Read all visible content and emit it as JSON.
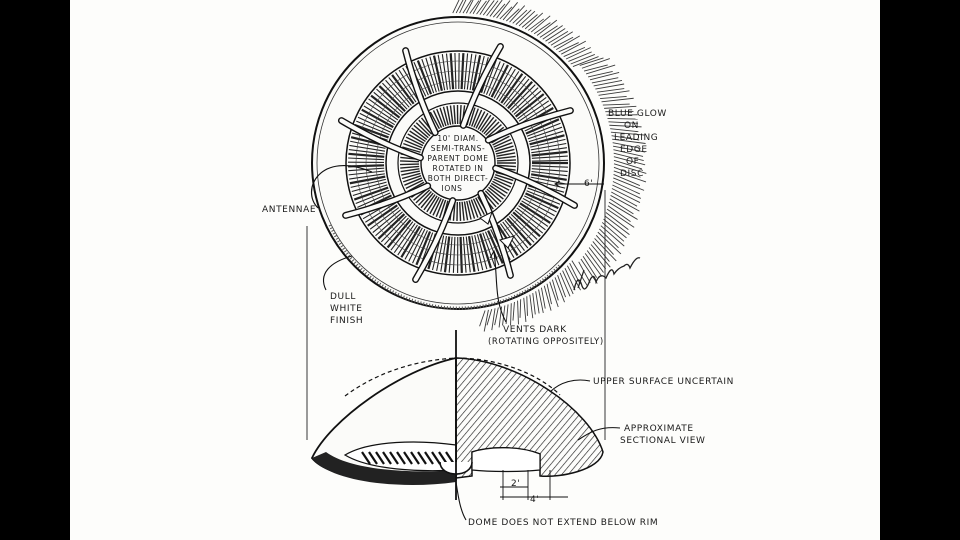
{
  "labels": {
    "dome_note": [
      "10' DIAM.",
      "SEMI-TRANS-",
      "PARENT DOME",
      "ROTATED IN",
      "BOTH DIRECT-",
      "IONS"
    ],
    "blue_glow": [
      "BLUE GLOW",
      "ON",
      "LEADING",
      "EDGE",
      "OF",
      "DISC"
    ],
    "dimension_6": "6'",
    "antennae": "ANTENNAE",
    "dull_finish": [
      "DULL",
      "WHITE",
      "FINISH"
    ],
    "vents": [
      "VENTS DARK",
      "(ROTATING OPPOSITELY)"
    ],
    "upper_surface": "UPPER SURFACE UNCERTAIN",
    "sectional": [
      "APPROXIMATE",
      "SECTIONAL VIEW"
    ],
    "dimension_2": "2'",
    "dimension_4": "4'",
    "dome_rim": "DOME DOES NOT EXTEND BELOW RIM"
  },
  "signature": "Del Crawford '91"
}
